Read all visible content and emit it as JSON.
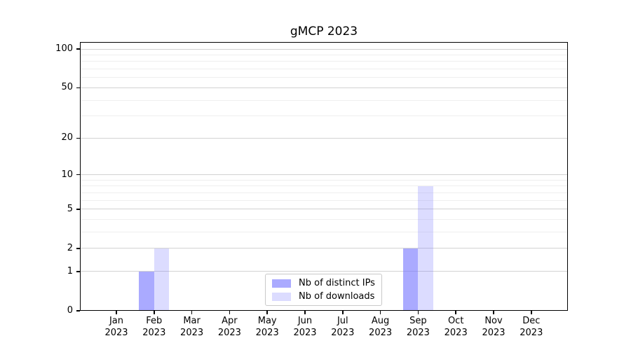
{
  "chart_data": {
    "type": "bar",
    "title": "gMCP 2023",
    "categories": [
      "Jan 2023",
      "Feb 2023",
      "Mar 2023",
      "Apr 2023",
      "May 2023",
      "Jun 2023",
      "Jul 2023",
      "Aug 2023",
      "Sep 2023",
      "Oct 2023",
      "Nov 2023",
      "Dec 2023"
    ],
    "series": [
      {
        "name": "Nb of distinct IPs",
        "color": "rgba(114,114,255,0.6)",
        "values": [
          0,
          1,
          0,
          0,
          0,
          0,
          0,
          0,
          2,
          0,
          0,
          0
        ]
      },
      {
        "name": "Nb of downloads",
        "color": "rgba(114,114,255,0.25)",
        "values": [
          0,
          2,
          0,
          0,
          0,
          0,
          0,
          0,
          8,
          0,
          0,
          0
        ]
      }
    ],
    "yscale": "log1p",
    "ylim": [
      0,
      100
    ],
    "y_major_ticks": [
      0,
      1,
      2,
      5,
      10,
      20,
      50,
      100
    ],
    "y_minor_ticks": [
      3,
      4,
      6,
      7,
      8,
      9,
      30,
      40,
      60,
      70,
      80,
      90
    ],
    "grid": "horizontal",
    "legend_position": "lower center inside"
  },
  "colors": {
    "background": "#ffffff",
    "axis": "#000000",
    "grid_major": "#d2d2d2",
    "grid_minor": "#efefef",
    "legend_border": "#c9c9c9",
    "text": "#000000"
  }
}
